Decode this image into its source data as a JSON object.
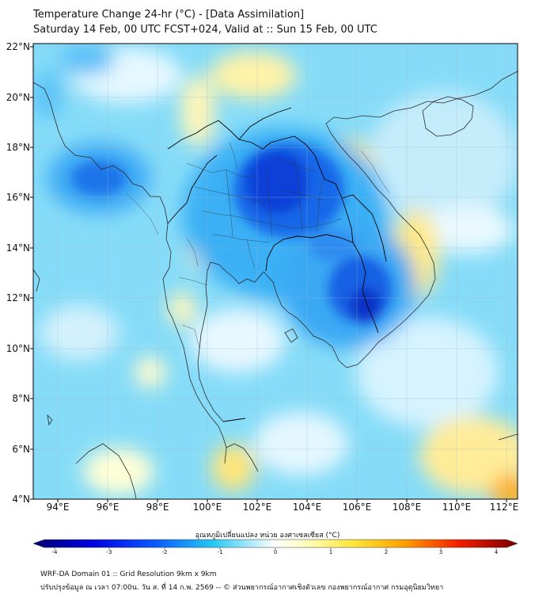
{
  "title": {
    "line1": "Temperature Change 24-hr (°C) - [Data Assimilation]",
    "line2": "Saturday 14 Feb, 00 UTC FCST+024, Valid at :: Sun 15 Feb, 00 UTC"
  },
  "axes": {
    "lat_labels": [
      "22°N",
      "20°N",
      "18°N",
      "16°N",
      "14°N",
      "12°N",
      "10°N",
      "8°N",
      "6°N",
      "4°N"
    ],
    "lon_labels": [
      "94°E",
      "96°E",
      "98°E",
      "100°E",
      "102°E",
      "104°E",
      "106°E",
      "108°E",
      "110°E",
      "112°E"
    ]
  },
  "colorbar": {
    "title": "อุณหภูมิเปลี่ยนแปลง หน่วย องศาเซลเซียส (°C)",
    "ticks": [
      "-4",
      "-3",
      "-2",
      "-1",
      "0",
      "1",
      "2",
      "3",
      "4"
    ],
    "min": -4,
    "max": 4,
    "colors": [
      "#000080",
      "#0000ff",
      "#1e90ff",
      "#00bfff",
      "#87ceeb",
      "#ffffff",
      "#ffff99",
      "#ffd700",
      "#ff8c00",
      "#ff0000",
      "#800000"
    ]
  },
  "footer": {
    "line1": "WRF-DA Domain 01 :: Grid Resolution 9km x 9km",
    "line2": "ปรับปรุงข้อมูล ณ เวลา 07:00น. วัน ส. ที่ 14 ก.พ. 2569 -- © ส่วนพยากรณ์อากาศเชิงตัวเลข กองพยากรณ์อากาศ กรมอุตุนิยมวิทยา"
  }
}
